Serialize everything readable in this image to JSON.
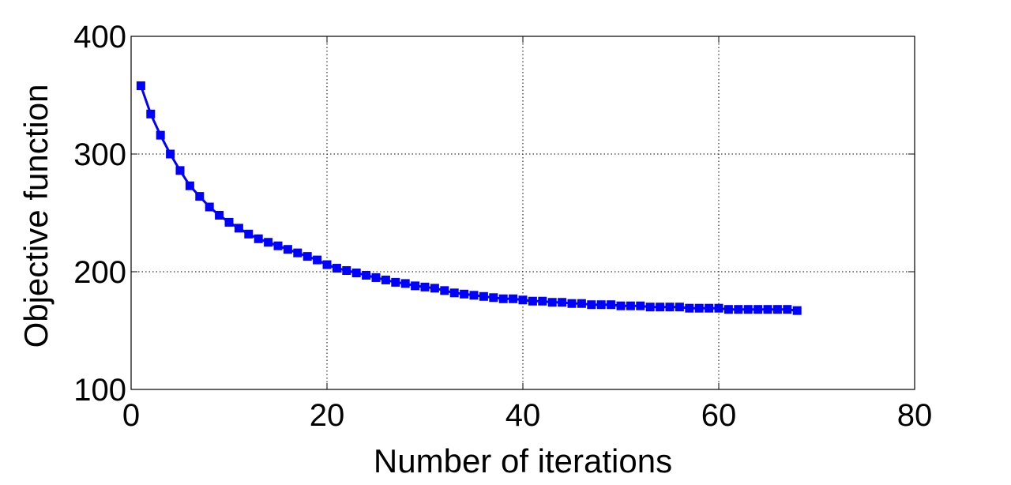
{
  "chart_data": {
    "type": "line",
    "title": "",
    "xlabel": "Number of iterations",
    "ylabel": "Objective function",
    "xlim": [
      0,
      80
    ],
    "ylim": [
      100,
      400
    ],
    "xticks": [
      0,
      20,
      40,
      60,
      80
    ],
    "yticks": [
      100,
      200,
      300,
      400
    ],
    "xtick_labels": [
      "0",
      "20",
      "40",
      "60",
      "80"
    ],
    "ytick_labels": [
      "100",
      "200",
      "300",
      "400"
    ],
    "grid": true,
    "series": [
      {
        "color": "#0000ff",
        "marker": "square",
        "x": [
          1,
          2,
          3,
          4,
          5,
          6,
          7,
          8,
          9,
          10,
          11,
          12,
          13,
          14,
          15,
          16,
          17,
          18,
          19,
          20,
          21,
          22,
          23,
          24,
          25,
          26,
          27,
          28,
          29,
          30,
          31,
          32,
          33,
          34,
          35,
          36,
          37,
          38,
          39,
          40,
          41,
          42,
          43,
          44,
          45,
          46,
          47,
          48,
          49,
          50,
          51,
          52,
          53,
          54,
          55,
          56,
          57,
          58,
          59,
          60,
          61,
          62,
          63,
          64,
          65,
          66,
          67,
          68
        ],
        "values": [
          358,
          334,
          316,
          300,
          286,
          273,
          264,
          255,
          248,
          242,
          237,
          232,
          228,
          225,
          222,
          219,
          216,
          213,
          210,
          206,
          203,
          201,
          199,
          197,
          195,
          193,
          191,
          190,
          188,
          187,
          186,
          184,
          182,
          181,
          180,
          179,
          178,
          177,
          177,
          176,
          175,
          175,
          174,
          174,
          173,
          173,
          172,
          172,
          172,
          171,
          171,
          171,
          170,
          170,
          170,
          170,
          169,
          169,
          169,
          169,
          168,
          168,
          168,
          168,
          168,
          168,
          168,
          167
        ]
      }
    ]
  }
}
